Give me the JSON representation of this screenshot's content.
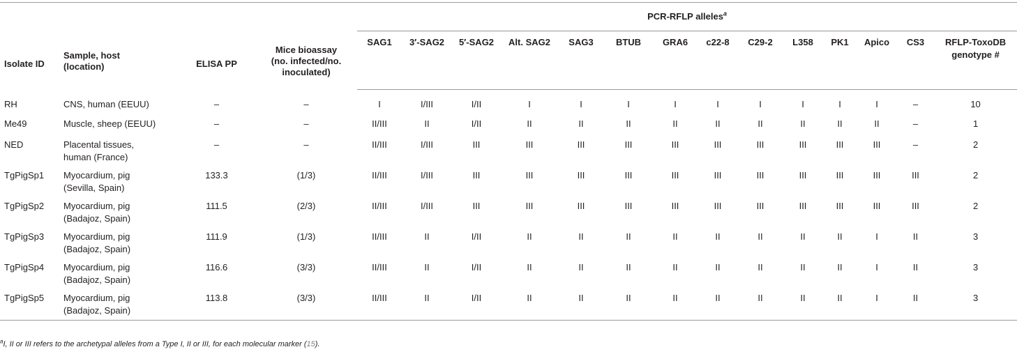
{
  "header": {
    "group_label": "PCR-RFLP alleles",
    "group_sup": "a",
    "columns": {
      "isolate": "Isolate ID",
      "sample": [
        "Sample, host",
        "(location)"
      ],
      "elisa": "ELISA PP",
      "mice": [
        "Mice bioassay",
        "(no. infected/no.",
        "inoculated)"
      ],
      "markers": [
        "SAG1",
        "3′-SAG2",
        "5′-SAG2",
        "Alt. SAG2",
        "SAG3",
        "BTUB",
        "GRA6",
        "c22-8",
        "C29-2",
        "L358",
        "PK1",
        "Apico",
        "CS3"
      ],
      "genotype": [
        "RFLP-ToxoDB",
        "genotype #"
      ]
    }
  },
  "rows": [
    {
      "id": "RH",
      "sample": [
        "CNS, human (EEUU)"
      ],
      "elisa": "–",
      "mice": "–",
      "alleles": [
        "I",
        "I/III",
        "I/II",
        "I",
        "I",
        "I",
        "I",
        "I",
        "I",
        "I",
        "I",
        "I",
        "–"
      ],
      "genotype": "10"
    },
    {
      "id": "Me49",
      "sample": [
        "Muscle, sheep (EEUU)"
      ],
      "elisa": "–",
      "mice": "–",
      "alleles": [
        "II/III",
        "II",
        "I/II",
        "II",
        "II",
        "II",
        "II",
        "II",
        "II",
        "II",
        "II",
        "II",
        "–"
      ],
      "genotype": "1"
    },
    {
      "id": "NED",
      "sample": [
        "Placental tissues,",
        "human (France)"
      ],
      "elisa": "–",
      "mice": "–",
      "alleles": [
        "II/III",
        "I/III",
        "III",
        "III",
        "III",
        "III",
        "III",
        "III",
        "III",
        "III",
        "III",
        "III",
        "–"
      ],
      "genotype": "2"
    },
    {
      "id": "TgPigSp1",
      "sample": [
        "Myocardium, pig",
        "(Sevilla, Spain)"
      ],
      "elisa": "133.3",
      "mice": "(1/3)",
      "alleles": [
        "II/III",
        "I/III",
        "III",
        "III",
        "III",
        "III",
        "III",
        "III",
        "III",
        "III",
        "III",
        "III",
        "III"
      ],
      "genotype": "2"
    },
    {
      "id": "TgPigSp2",
      "sample": [
        "Myocardium, pig",
        "(Badajoz, Spain)"
      ],
      "elisa": "111.5",
      "mice": "(2/3)",
      "alleles": [
        "II/III",
        "I/III",
        "III",
        "III",
        "III",
        "III",
        "III",
        "III",
        "III",
        "III",
        "III",
        "III",
        "III"
      ],
      "genotype": "2"
    },
    {
      "id": "TgPigSp3",
      "sample": [
        "Myocardium, pig",
        "(Badajoz, Spain)"
      ],
      "elisa": "111.9",
      "mice": "(1/3)",
      "alleles": [
        "II/III",
        "II",
        "I/II",
        "II",
        "II",
        "II",
        "II",
        "II",
        "II",
        "II",
        "II",
        "I",
        "II"
      ],
      "genotype": "3"
    },
    {
      "id": "TgPigSp4",
      "sample": [
        "Myocardium, pig",
        "(Badajoz, Spain)"
      ],
      "elisa": "116.6",
      "mice": "(3/3)",
      "alleles": [
        "II/III",
        "II",
        "I/II",
        "II",
        "II",
        "II",
        "II",
        "II",
        "II",
        "II",
        "II",
        "I",
        "II"
      ],
      "genotype": "3"
    },
    {
      "id": "TgPigSp5",
      "sample": [
        "Myocardium, pig",
        "(Badajoz, Spain)"
      ],
      "elisa": "113.8",
      "mice": "(3/3)",
      "alleles": [
        "II/III",
        "II",
        "I/II",
        "II",
        "II",
        "II",
        "II",
        "II",
        "II",
        "II",
        "II",
        "I",
        "II"
      ],
      "genotype": "3"
    }
  ],
  "footnote": {
    "marker": "a",
    "text": "I, II or III refers to the archetypal alleles from a Type I, II or III, for each molecular marker (",
    "ref": "15",
    "tail": ")."
  }
}
